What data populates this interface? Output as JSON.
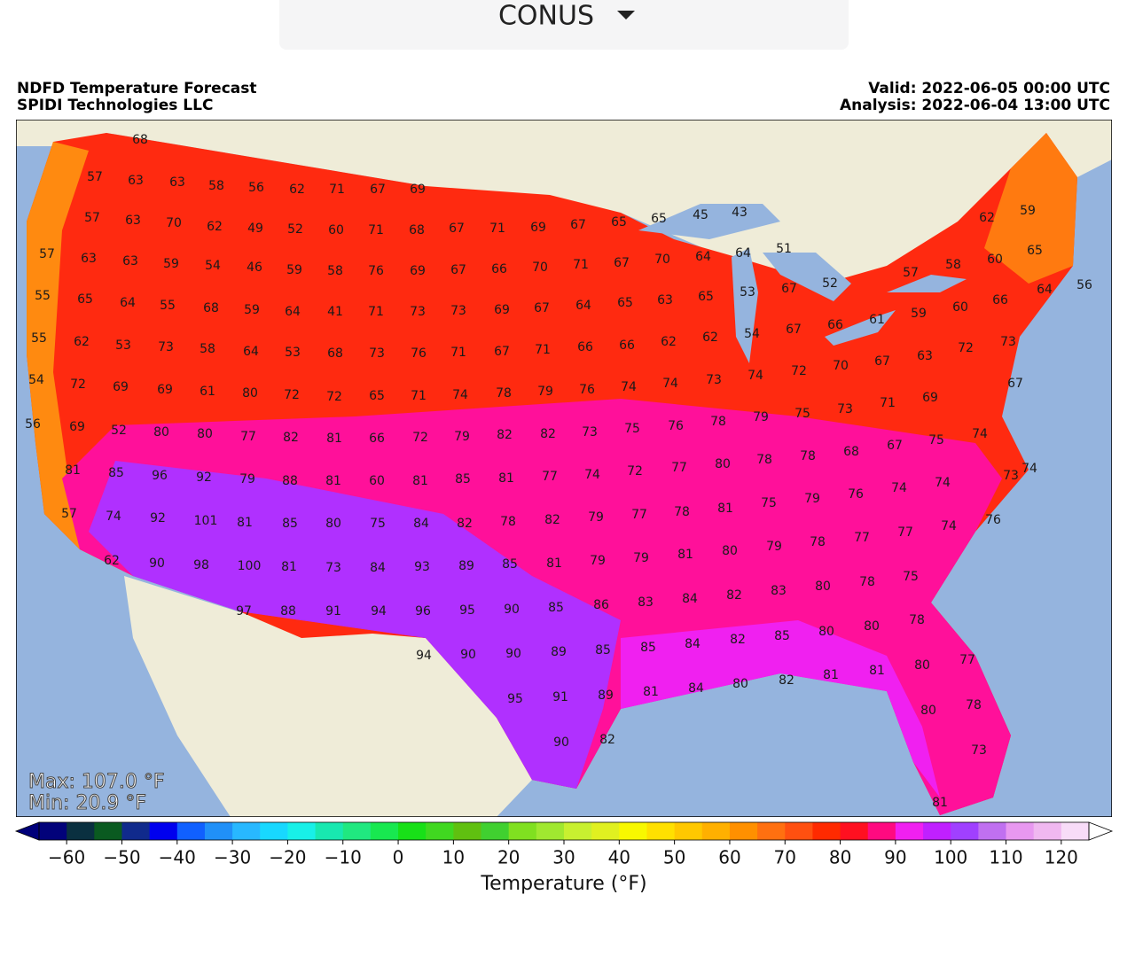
{
  "header": {
    "dropdown": "CONUS"
  },
  "map": {
    "title": "NDFD Temperature Forecast",
    "source": "SPIDI Technologies LLC",
    "valid": "Valid: 2022-06-05 00:00 UTC",
    "analysis": "Analysis: 2022-06-04 13:00 UTC",
    "max": "Max: 107.0 °F",
    "min": "Min: 20.9 °F",
    "label_rows": [
      [
        68
      ],
      [
        57,
        63,
        63,
        58,
        56,
        62,
        71,
        67,
        69
      ],
      [
        57,
        63,
        70,
        62,
        49,
        52,
        60,
        71,
        68,
        67,
        71,
        69,
        67,
        65,
        65,
        45,
        43,
        62,
        59
      ],
      [
        57,
        63,
        63,
        59,
        54,
        46,
        59,
        58,
        76,
        69,
        67,
        66,
        70,
        71,
        67,
        70,
        64,
        64,
        51,
        58,
        60,
        65
      ],
      [
        55,
        65,
        64,
        55,
        68,
        59,
        64,
        41,
        71,
        73,
        73,
        69,
        67,
        64,
        65,
        63,
        65,
        53,
        67,
        52,
        57,
        64,
        56
      ],
      [
        55,
        62,
        53,
        73,
        58,
        64,
        53,
        68,
        73,
        76,
        71,
        67,
        71,
        66,
        66,
        62,
        62,
        54,
        67,
        66,
        61,
        59,
        60,
        66,
        73
      ],
      [
        54,
        72,
        69,
        69,
        61,
        80,
        72,
        72,
        65,
        71,
        74,
        78,
        79,
        76,
        74,
        74,
        73,
        74,
        72,
        70,
        67,
        63,
        72,
        67
      ],
      [
        56,
        69,
        52,
        80,
        80,
        77,
        82,
        81,
        66,
        72,
        79,
        82,
        82,
        73,
        75,
        76,
        78,
        79,
        75,
        73,
        71,
        69
      ],
      [
        81,
        85,
        96,
        92,
        79,
        88,
        81,
        60,
        81,
        85,
        81,
        77,
        74,
        72,
        77,
        80,
        78,
        78,
        68,
        67,
        75,
        74,
        73,
        74
      ],
      [
        57,
        74,
        92,
        101,
        81,
        85,
        80,
        75,
        84,
        82,
        78,
        82,
        79,
        77,
        78,
        81,
        75,
        79,
        76,
        74,
        74,
        76
      ],
      [
        62,
        90,
        98,
        100,
        81,
        73,
        84,
        93,
        89,
        85,
        81,
        79,
        79,
        81,
        80,
        79,
        78,
        77,
        77,
        74
      ],
      [
        97,
        88,
        91,
        94,
        96,
        95,
        90,
        85,
        86,
        83,
        84,
        82,
        83,
        80,
        78,
        75
      ],
      [
        94,
        90,
        90,
        89,
        85,
        85,
        84,
        82,
        85,
        80,
        80,
        78
      ],
      [
        95,
        91,
        89,
        81,
        84,
        80,
        82,
        81,
        81,
        80,
        77
      ],
      [
        90,
        82,
        80,
        78
      ],
      [
        73,
        81
      ]
    ]
  },
  "colorbar": {
    "label": "Temperature (°F)",
    "lim": [
      -65,
      125
    ],
    "ticks": [
      {
        "value": -60,
        "label": "−60"
      },
      {
        "value": -50,
        "label": "−50"
      },
      {
        "value": -40,
        "label": "−40"
      },
      {
        "value": -30,
        "label": "−30"
      },
      {
        "value": -20,
        "label": "−20"
      },
      {
        "value": -10,
        "label": "−10"
      },
      0,
      10,
      20,
      30,
      40,
      50,
      60,
      70,
      80,
      90,
      100,
      110,
      120
    ],
    "colors": [
      "#02027a",
      "#0a3040",
      "#0a5a20",
      "#102a8c",
      "#0000ee",
      "#1060ff",
      "#2090f8",
      "#28b8ff",
      "#18d8ff",
      "#18f0e8",
      "#18e8b0",
      "#20e880",
      "#18e850",
      "#18e018",
      "#40d820",
      "#60c010",
      "#40d030",
      "#80e020",
      "#a0e830",
      "#c8f030",
      "#e0f020",
      "#f8f800",
      "#ffe000",
      "#ffc800",
      "#ffb000",
      "#ff9000",
      "#ff7010",
      "#ff5010",
      "#ff2a00",
      "#ff1020",
      "#ff0a80",
      "#f020f0",
      "#c020ff",
      "#a040ff",
      "#c070f0",
      "#e898f0",
      "#f0b8f0",
      "#f8dcf8"
    ],
    "extend_colors": [
      "#00007a",
      "#ffffff"
    ]
  }
}
